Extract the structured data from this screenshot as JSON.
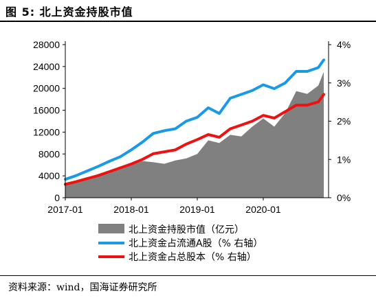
{
  "figure": {
    "title": "图 5:  北上资金持股市值",
    "source": "资料来源：wind，国海证券研究所"
  },
  "chart_data": {
    "type": "area",
    "title": "",
    "x_tick_labels": [
      "2017-01",
      "2018-01",
      "2019-01",
      "2020-01"
    ],
    "y_left": {
      "ticks": [
        0,
        4000,
        8000,
        12000,
        16000,
        20000,
        24000,
        28000
      ],
      "range": [
        0,
        28000
      ]
    },
    "y_right": {
      "ticks": [
        "0%",
        "1%",
        "2%",
        "3%",
        "4%"
      ],
      "range": [
        0,
        4
      ]
    },
    "x": [
      "2017-01",
      "2017-03",
      "2017-05",
      "2017-07",
      "2017-09",
      "2017-11",
      "2018-01",
      "2018-03",
      "2018-05",
      "2018-07",
      "2018-09",
      "2018-11",
      "2019-01",
      "2019-03",
      "2019-05",
      "2019-07",
      "2019-09",
      "2019-11",
      "2020-01",
      "2020-03",
      "2020-05",
      "2020-07",
      "2020-09",
      "2020-11",
      "2020-12"
    ],
    "series": [
      {
        "name": "北上资金持股市值（亿元）",
        "type": "area",
        "axis": "left",
        "color": "#808080",
        "values": [
          2300,
          2900,
          3600,
          4300,
          5000,
          5700,
          6000,
          6700,
          6500,
          6200,
          6800,
          7200,
          8000,
          10500,
          10000,
          11500,
          11200,
          13000,
          14500,
          13000,
          15500,
          19500,
          19000,
          20500,
          23000
        ]
      },
      {
        "name": "北上资金占流通A股（% 右轴）",
        "type": "line",
        "axis": "right",
        "color": "#1a9ae6",
        "values": [
          0.48,
          0.58,
          0.7,
          0.82,
          0.95,
          1.07,
          1.25,
          1.45,
          1.68,
          1.75,
          1.8,
          2.0,
          2.1,
          2.35,
          2.2,
          2.6,
          2.7,
          2.8,
          2.95,
          2.85,
          3.0,
          3.3,
          3.3,
          3.4,
          3.6
        ]
      },
      {
        "name": "北上资金占总股本（% 右轴）",
        "type": "line",
        "axis": "right",
        "color": "#ee1111",
        "values": [
          0.35,
          0.42,
          0.5,
          0.58,
          0.68,
          0.78,
          0.88,
          1.0,
          1.15,
          1.2,
          1.25,
          1.4,
          1.52,
          1.65,
          1.58,
          1.8,
          1.9,
          2.0,
          2.15,
          2.08,
          2.25,
          2.42,
          2.42,
          2.5,
          2.7
        ]
      }
    ],
    "legend_position": "bottom",
    "grid": false
  }
}
